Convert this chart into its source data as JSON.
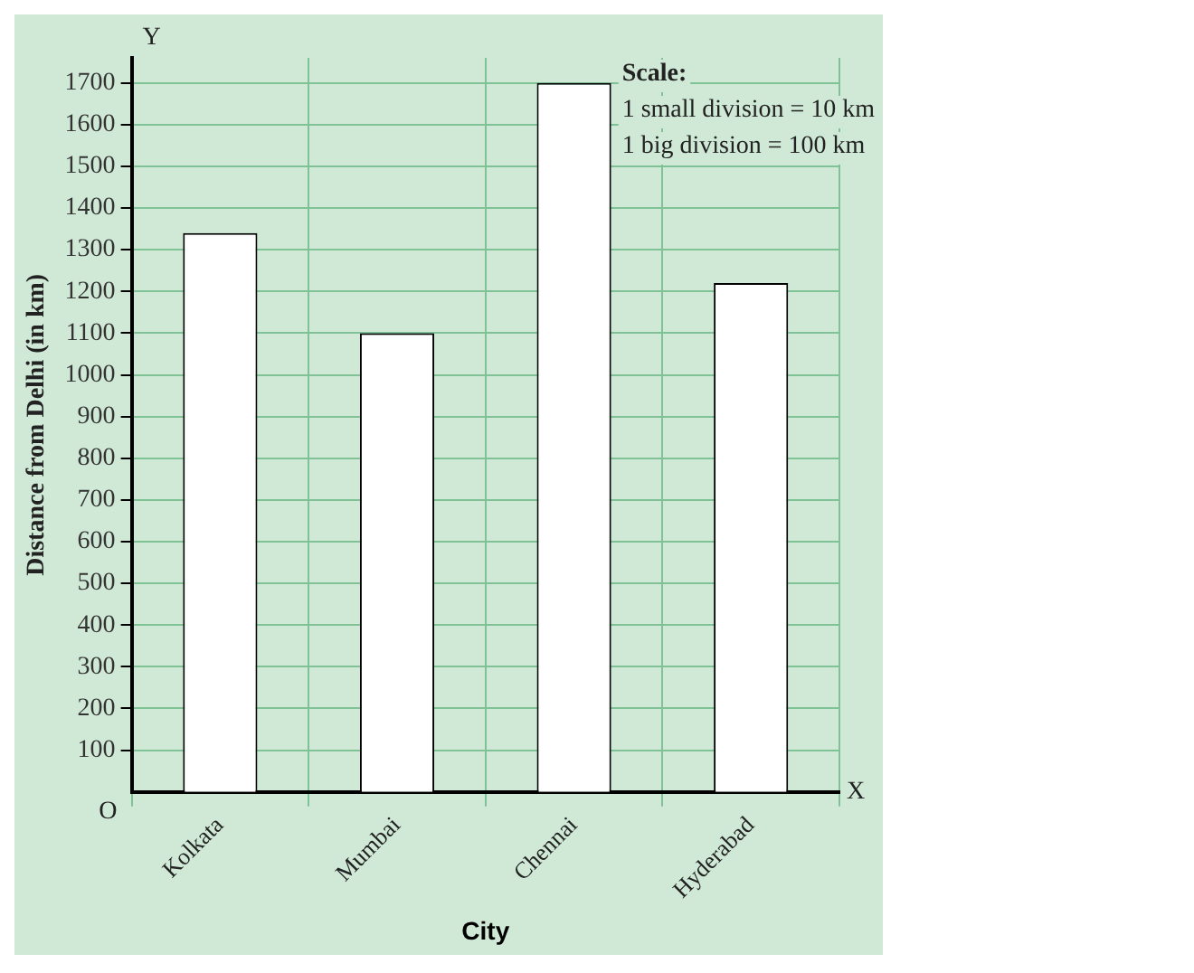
{
  "chart_data": {
    "type": "bar",
    "xlabel": "City",
    "ylabel": "Distance from Delhi (in km)",
    "categories": [
      "Kolkata",
      "Mumbai",
      "Chennai",
      "Hyderabad"
    ],
    "values": [
      1340,
      1100,
      1700,
      1220
    ],
    "color": "#ffffff",
    "ylim": [
      0,
      1760
    ],
    "yticks": [
      100,
      200,
      300,
      400,
      500,
      600,
      700,
      800,
      900,
      1000,
      1100,
      1200,
      1300,
      1400,
      1500,
      1600,
      1700
    ],
    "grid": true,
    "annotations": [
      "Scale:",
      "1 small division = 10 km",
      "1 big division = 100 km",
      "O",
      "X",
      "Y"
    ]
  }
}
